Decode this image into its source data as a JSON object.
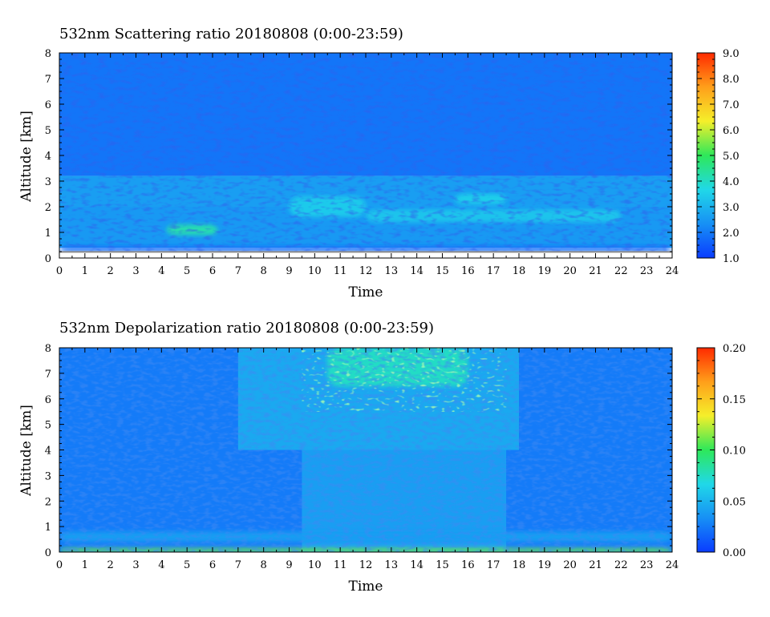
{
  "chart_data": [
    {
      "type": "heatmap",
      "title": "532nm Scattering ratio  20180808 (0:00-23:59)",
      "xlabel": "Time",
      "ylabel": "Altitude [km]",
      "xlim": [
        0,
        24
      ],
      "ylim": [
        0,
        8
      ],
      "x_ticks": [
        "0",
        "1",
        "2",
        "3",
        "4",
        "5",
        "6",
        "7",
        "8",
        "9",
        "10",
        "11",
        "12",
        "13",
        "14",
        "15",
        "16",
        "17",
        "18",
        "19",
        "20",
        "21",
        "22",
        "23",
        "24"
      ],
      "y_ticks": [
        "0",
        "1",
        "2",
        "3",
        "4",
        "5",
        "6",
        "7",
        "8"
      ],
      "colorbar": {
        "range": [
          1.0,
          9.0
        ],
        "tick_values": [
          1,
          2,
          3,
          4,
          5,
          6,
          7,
          8,
          9
        ],
        "tick_labels": [
          "1.0",
          "2.0",
          "3.0",
          "4.0",
          "5.0",
          "6.0",
          "7.0",
          "8.0",
          "9.0"
        ],
        "colormap": [
          "#0a3cff",
          "#1790f5",
          "#20d8e8",
          "#2ee85a",
          "#f5ef2a",
          "#ff9f1a",
          "#ff2a00"
        ]
      },
      "features": [
        {
          "time": [
            0,
            24
          ],
          "altitude": [
            3.2,
            8
          ],
          "value": 1.9
        },
        {
          "time": [
            0,
            24
          ],
          "altitude": [
            2.0,
            3.2
          ],
          "value": 2.6
        },
        {
          "time": [
            0,
            24
          ],
          "altitude": [
            0.4,
            2.0
          ],
          "value": 2.5
        },
        {
          "time": [
            4.2,
            6.2
          ],
          "altitude": [
            0.9,
            1.3
          ],
          "value": 4.2
        },
        {
          "time": [
            9.0,
            12.0
          ],
          "altitude": [
            1.6,
            2.4
          ],
          "value": 3.4
        },
        {
          "time": [
            15.5,
            17.5
          ],
          "altitude": [
            2.1,
            2.5
          ],
          "value": 3.5
        },
        {
          "time": [
            12.0,
            22.0
          ],
          "altitude": [
            1.4,
            1.9
          ],
          "value": 3.3
        },
        {
          "time": [
            0,
            24
          ],
          "altitude": [
            0.25,
            0.45
          ],
          "value": 1.8
        }
      ]
    },
    {
      "type": "heatmap",
      "title": "532nm Depolarization ratio  20180808 (0:00-23:59)",
      "xlabel": "Time",
      "ylabel": "Altitude [km]",
      "xlim": [
        0,
        24
      ],
      "ylim": [
        0,
        8
      ],
      "x_ticks": [
        "0",
        "1",
        "2",
        "3",
        "4",
        "5",
        "6",
        "7",
        "8",
        "9",
        "10",
        "11",
        "12",
        "13",
        "14",
        "15",
        "16",
        "17",
        "18",
        "19",
        "20",
        "21",
        "22",
        "23",
        "24"
      ],
      "y_ticks": [
        "0",
        "1",
        "2",
        "3",
        "4",
        "5",
        "6",
        "7",
        "8"
      ],
      "colorbar": {
        "range": [
          0.0,
          0.2
        ],
        "tick_values": [
          0.0,
          0.05,
          0.1,
          0.15,
          0.2
        ],
        "tick_labels": [
          "0.00",
          "0.05",
          "0.10",
          "0.15",
          "0.20"
        ],
        "colormap": [
          "#0a3cff",
          "#1790f5",
          "#20d8e8",
          "#2ee85a",
          "#f5ef2a",
          "#ff9f1a",
          "#ff2a00"
        ]
      },
      "features": [
        {
          "time": [
            0,
            24
          ],
          "altitude": [
            0,
            8
          ],
          "value": 0.025
        },
        {
          "time": [
            9.5,
            17.5
          ],
          "altitude": [
            0,
            4
          ],
          "value": 0.04
        },
        {
          "time": [
            7,
            18
          ],
          "altitude": [
            4,
            8
          ],
          "value": 0.045
        },
        {
          "time": [
            10.5,
            16
          ],
          "altitude": [
            6.5,
            8
          ],
          "value": 0.075
        },
        {
          "time": [
            0,
            24
          ],
          "altitude": [
            0.4,
            0.8
          ],
          "value": 0.04
        },
        {
          "time": [
            0,
            24
          ],
          "altitude": [
            0,
            0.15
          ],
          "value": 0.11
        }
      ]
    }
  ]
}
